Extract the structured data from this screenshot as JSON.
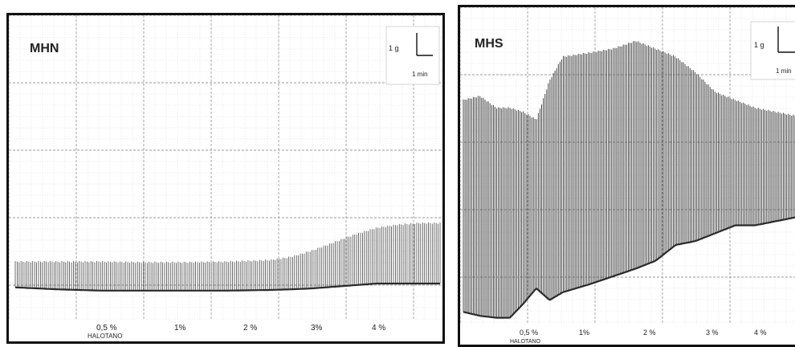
{
  "chart_data": [
    {
      "type": "line",
      "title": "MHN",
      "scale_bar": {
        "vertical": "1 g",
        "horizontal": "1 min"
      },
      "x_markers": [
        "0,5 %",
        "1%",
        "2 %",
        "3%",
        "4 %"
      ],
      "x_label": "HALOTANO",
      "envelope": {
        "x": [
          0,
          10,
          20,
          30,
          40,
          50,
          60,
          65,
          70,
          75,
          80,
          85,
          90,
          95,
          100
        ],
        "upper": [
          1.0,
          1.0,
          1.0,
          0.98,
          0.98,
          1.0,
          1.05,
          1.15,
          1.35,
          1.6,
          1.85,
          2.05,
          2.15,
          2.2,
          2.2
        ],
        "lower": [
          0.18,
          0.12,
          0.08,
          0.08,
          0.08,
          0.08,
          0.1,
          0.12,
          0.15,
          0.2,
          0.25,
          0.3,
          0.3,
          0.3,
          0.3
        ]
      }
    },
    {
      "type": "line",
      "title": "MHS",
      "scale_bar": {
        "vertical": "1 g",
        "horizontal": "1 min"
      },
      "x_markers": [
        "0,5 %",
        "1%",
        "2 %",
        "3 %",
        "4 %"
      ],
      "x_label": "HALOTANO",
      "envelope": {
        "x": [
          0,
          5,
          10,
          14,
          18,
          22,
          26,
          30,
          38,
          45,
          52,
          58,
          64,
          70,
          76,
          82,
          88,
          94,
          100
        ],
        "upper": [
          5.7,
          5.8,
          5.5,
          5.5,
          5.4,
          5.2,
          6.2,
          6.8,
          6.9,
          7.0,
          7.2,
          7.0,
          6.8,
          6.4,
          5.9,
          5.7,
          5.5,
          5.4,
          5.3
        ],
        "lower": [
          0.3,
          0.2,
          0.15,
          0.15,
          0.5,
          0.9,
          0.6,
          0.8,
          1.0,
          1.2,
          1.4,
          1.6,
          2.0,
          2.1,
          2.3,
          2.5,
          2.5,
          2.6,
          2.7
        ]
      }
    }
  ]
}
